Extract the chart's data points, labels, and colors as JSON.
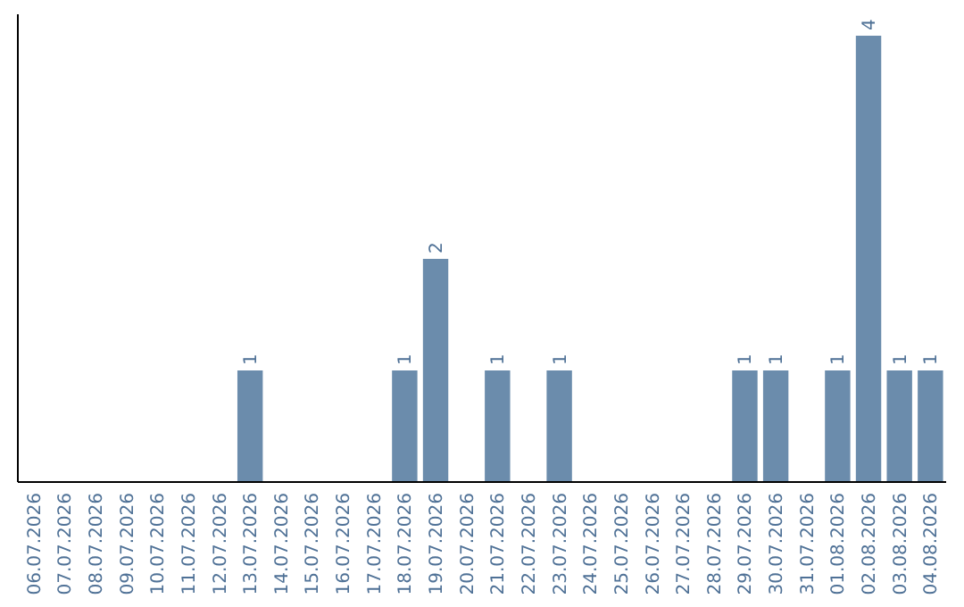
{
  "chart_data": {
    "type": "bar",
    "categories": [
      "06.07.2026",
      "07.07.2026",
      "08.07.2026",
      "09.07.2026",
      "10.07.2026",
      "11.07.2026",
      "12.07.2026",
      "13.07.2026",
      "14.07.2026",
      "15.07.2026",
      "16.07.2026",
      "17.07.2026",
      "18.07.2026",
      "19.07.2026",
      "20.07.2026",
      "21.07.2026",
      "22.07.2026",
      "23.07.2026",
      "24.07.2026",
      "25.07.2026",
      "26.07.2026",
      "27.07.2026",
      "28.07.2026",
      "29.07.2026",
      "30.07.2026",
      "31.07.2026",
      "01.08.2026",
      "02.08.2026",
      "03.08.2026",
      "04.08.2026"
    ],
    "values": [
      0,
      0,
      0,
      0,
      0,
      0,
      0,
      1,
      0,
      0,
      0,
      0,
      1,
      2,
      0,
      1,
      0,
      1,
      0,
      0,
      0,
      0,
      0,
      1,
      1,
      0,
      1,
      4,
      1,
      1
    ],
    "value_labels": [
      null,
      null,
      null,
      null,
      null,
      null,
      null,
      "1",
      null,
      null,
      null,
      null,
      "1",
      "2",
      null,
      "1",
      null,
      "1",
      null,
      null,
      null,
      null,
      null,
      "1",
      "1",
      null,
      "1",
      "4",
      "1",
      "1"
    ],
    "color": "#6b8cac"
  }
}
